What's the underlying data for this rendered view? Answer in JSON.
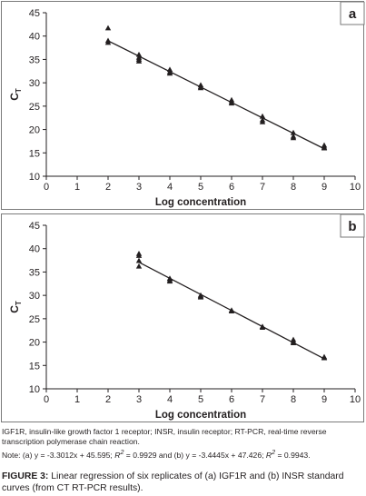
{
  "chart_data": [
    {
      "type": "scatter",
      "panel_label": "a",
      "xlabel": "Log concentration",
      "ylabel": "C",
      "ylabel_sub": "T",
      "xlim": [
        0,
        10
      ],
      "ylim": [
        10,
        45
      ],
      "xticks": [
        0,
        1,
        2,
        3,
        4,
        5,
        6,
        7,
        8,
        9,
        10
      ],
      "yticks": [
        10,
        15,
        20,
        25,
        30,
        35,
        40,
        45
      ],
      "grid": false,
      "trendline": {
        "slope": -3.3012,
        "intercept": 45.595,
        "x_range": [
          2,
          9
        ]
      },
      "series": [
        {
          "marker": "triangle",
          "x": [
            2,
            2,
            2,
            3,
            3,
            3,
            3,
            4,
            4,
            4,
            5,
            5,
            5,
            6,
            6,
            6,
            7,
            7,
            7,
            8,
            8,
            8,
            9,
            9,
            9
          ],
          "y": [
            41.7,
            39.0,
            38.6,
            36.0,
            35.4,
            35.0,
            34.6,
            32.8,
            32.3,
            32.0,
            29.5,
            29.1,
            28.9,
            26.3,
            25.9,
            25.6,
            22.8,
            22.0,
            21.6,
            19.3,
            18.5,
            18.2,
            16.6,
            16.2,
            16.0
          ]
        }
      ]
    },
    {
      "type": "scatter",
      "panel_label": "b",
      "xlabel": "Log concentration",
      "ylabel": "C",
      "ylabel_sub": "T",
      "xlim": [
        0,
        10
      ],
      "ylim": [
        10,
        45
      ],
      "xticks": [
        0,
        1,
        2,
        3,
        4,
        5,
        6,
        7,
        8,
        9,
        10
      ],
      "yticks": [
        10,
        15,
        20,
        25,
        30,
        35,
        40,
        45
      ],
      "grid": false,
      "trendline": {
        "slope": -3.4445,
        "intercept": 47.426,
        "x_range": [
          3,
          9
        ]
      },
      "series": [
        {
          "marker": "triangle",
          "x": [
            3,
            3,
            3,
            3,
            4,
            4,
            4,
            5,
            5,
            5,
            6,
            6,
            7,
            7,
            8,
            8,
            8,
            9,
            9
          ],
          "y": [
            38.9,
            38.5,
            37.4,
            36.2,
            33.6,
            33.3,
            33.0,
            30.0,
            29.8,
            29.6,
            26.8,
            26.6,
            23.3,
            23.1,
            20.5,
            20.1,
            19.8,
            16.8,
            16.6
          ]
        }
      ]
    }
  ],
  "caption": {
    "abbreviations": "IGF1R, insulin-like growth factor 1 receptor; INSR, insulin receptor; RT-PCR, real-time reverse transcription polymerase chain reaction.",
    "note_prefix": "Note: (a) y = -3.3012x + 45.595; ",
    "r2_a_value": " = 0.9929 and (b) y = -3.4445x + 47.426; ",
    "r2_b_value": " = 0.9943.",
    "r_symbol": "R",
    "r_exponent": "2",
    "figure_label": "FIGURE 3:",
    "figure_text": " Linear regression of six replicates of (a) IGF1R and (b) INSR standard curves (from CT RT-PCR results)."
  }
}
